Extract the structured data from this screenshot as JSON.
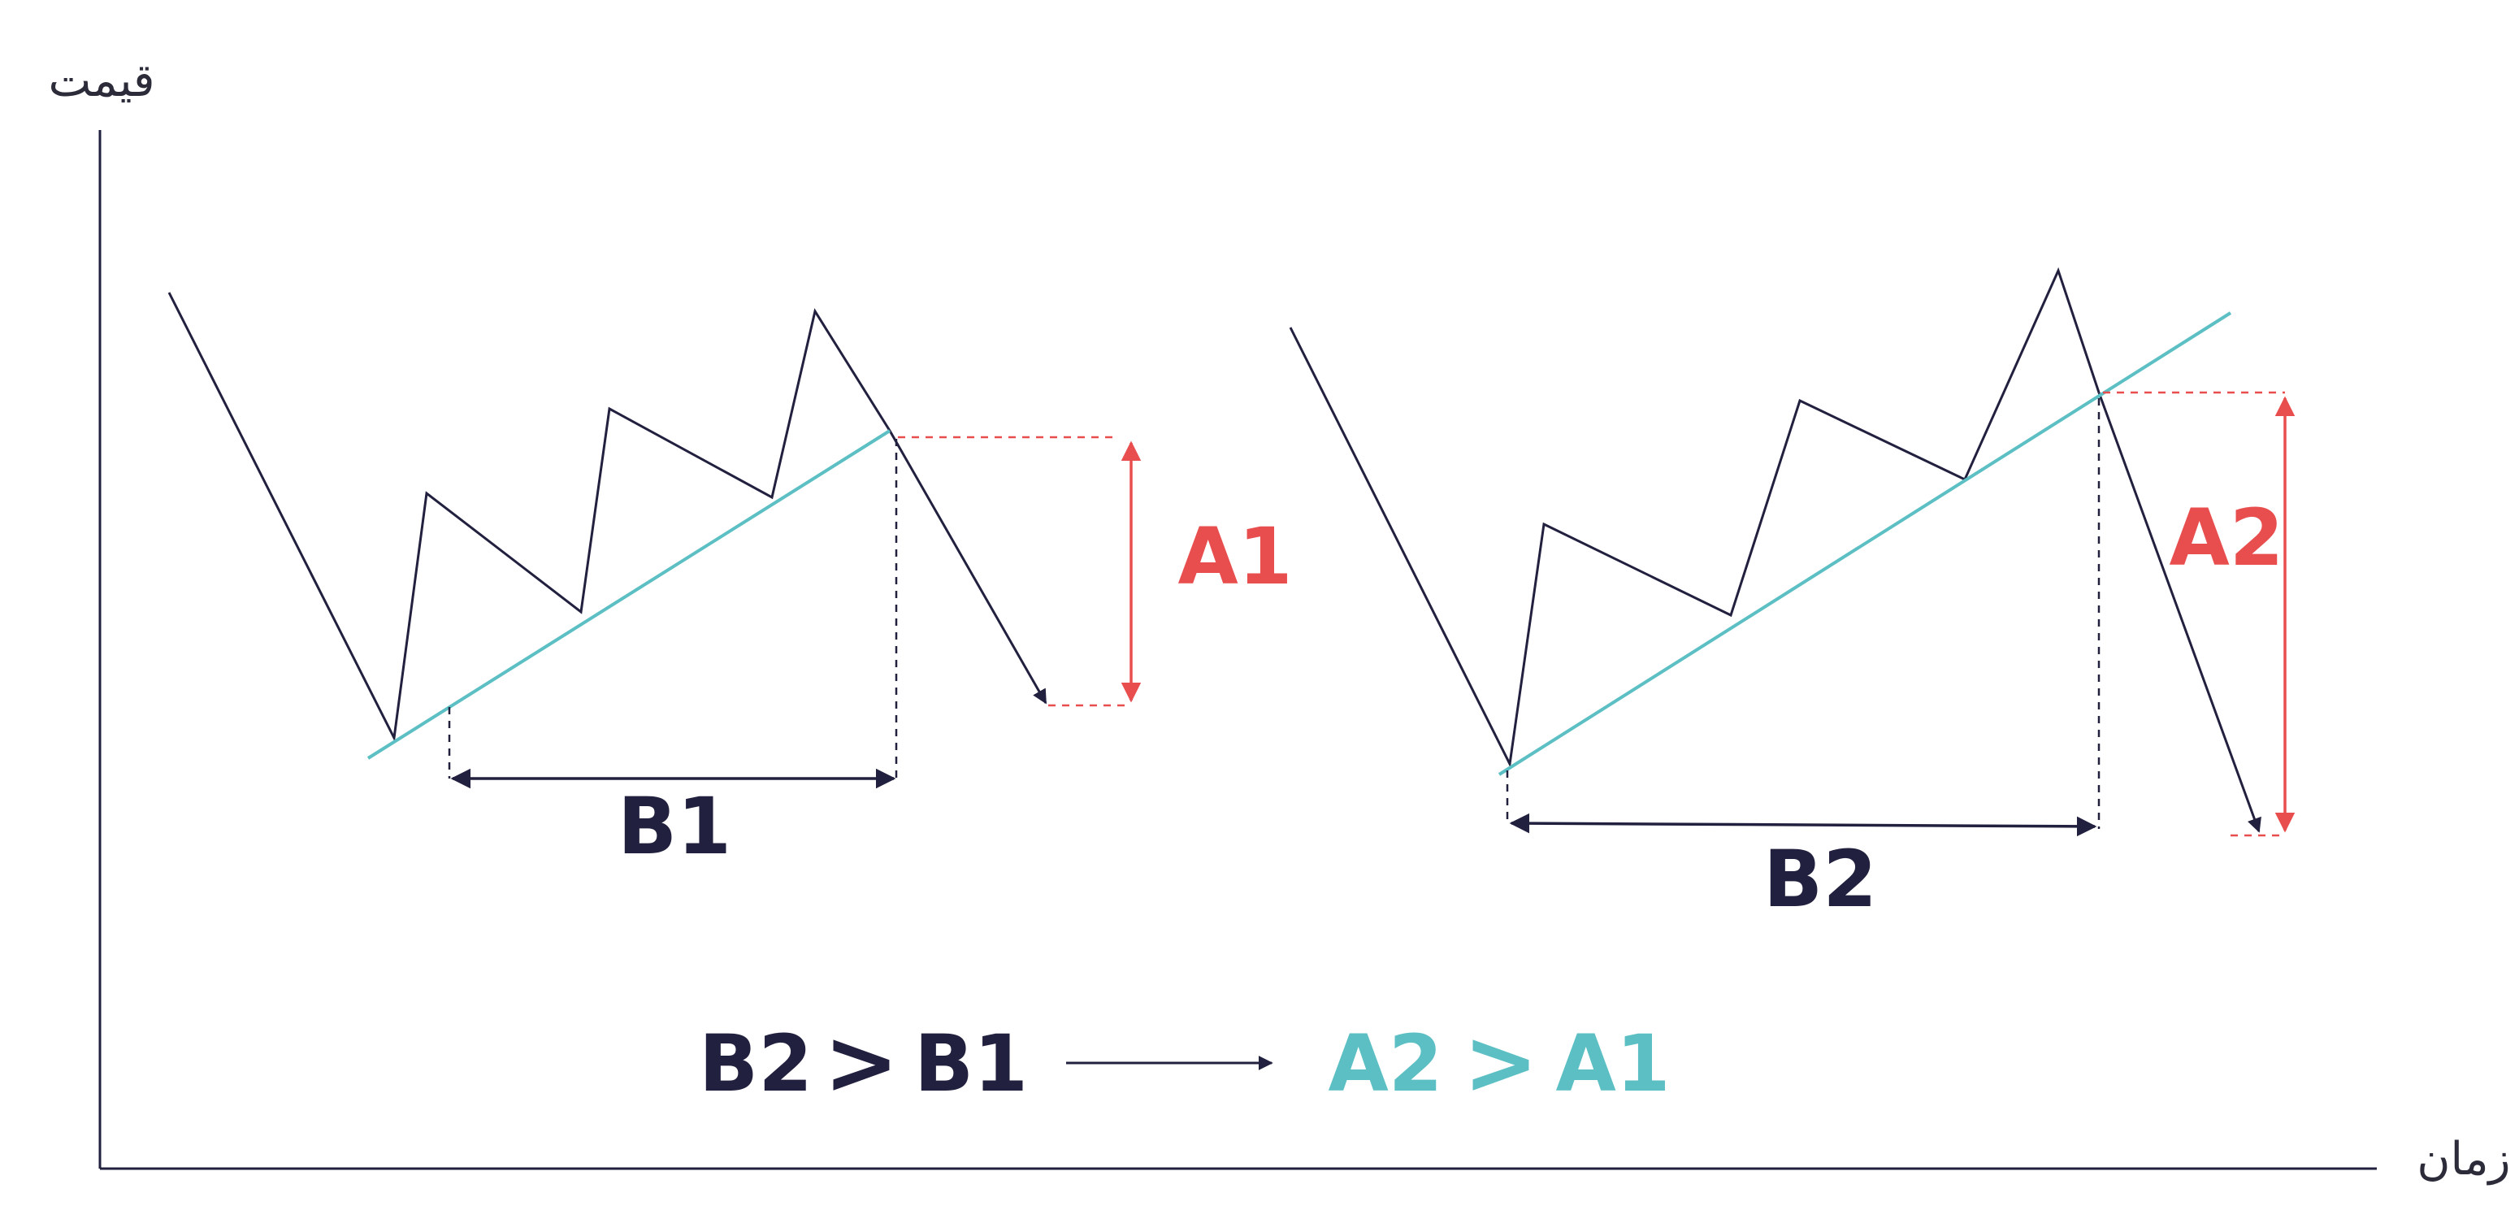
{
  "axes": {
    "y_label": "قیمت",
    "x_label": "زمان"
  },
  "pattern1": {
    "height_label": "A1",
    "width_label": "B1"
  },
  "pattern2": {
    "height_label": "A2",
    "width_label": "B2"
  },
  "conclusion": {
    "left_a": "B2",
    "left_op": ">",
    "left_b": "B1",
    "right_a": "A2",
    "right_op": ">",
    "right_b": "A1"
  },
  "colors": {
    "price_line": "#22203f",
    "trendline": "#5bbfc4",
    "height_marker": "#e84e4e",
    "text_dark": "#22203f",
    "text_teal": "#5bbfc4"
  }
}
